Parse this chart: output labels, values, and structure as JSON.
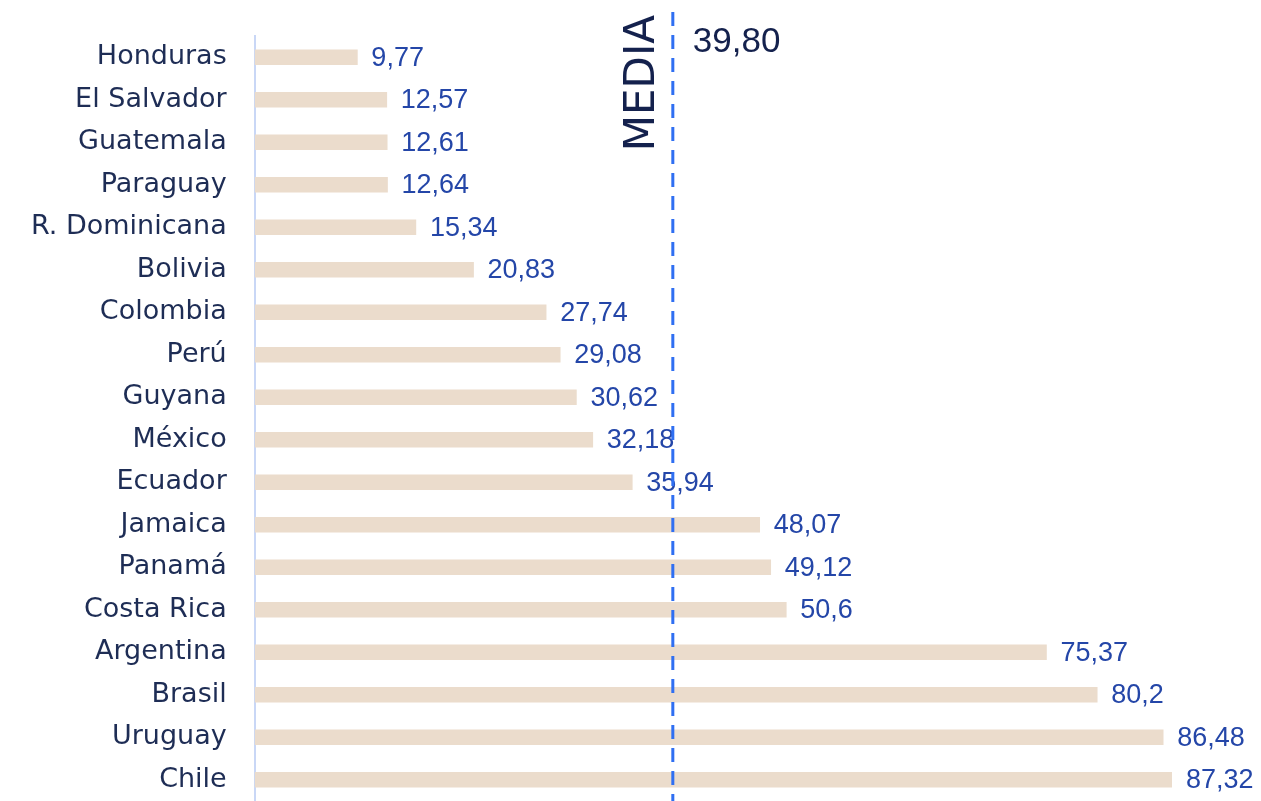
{
  "chart_data": {
    "type": "bar",
    "orientation": "horizontal",
    "categories": [
      "Honduras",
      "El Salvador",
      "Guatemala",
      "Paraguay",
      "R. Dominicana",
      "Bolivia",
      "Colombia",
      "Perú",
      "Guyana",
      "México",
      "Ecuador",
      "Jamaica",
      "Panamá",
      "Costa Rica",
      "Argentina",
      "Brasil",
      "Uruguay",
      "Chile"
    ],
    "values": [
      9.77,
      12.57,
      12.61,
      12.64,
      15.34,
      20.83,
      27.74,
      29.08,
      30.62,
      32.18,
      35.94,
      48.07,
      49.12,
      50.6,
      75.37,
      80.2,
      86.48,
      87.32
    ],
    "value_labels": [
      "9,77",
      "12,57",
      "12,61",
      "12,64",
      "15,34",
      "20,83",
      "27,74",
      "29,08",
      "30,62",
      "32,18",
      "35,94",
      "48,07",
      "49,12",
      "50,6",
      "75,37",
      "80,2",
      "86,48",
      "87,32"
    ],
    "color": "#ebdccc",
    "tick_labels": "y",
    "ref_lines": [
      {
        "axis": "x",
        "value": 39.8,
        "label": "MEDIA",
        "color": "#2f6ff2",
        "line_style": "dashed"
      }
    ],
    "annotations": [
      {
        "text": "39,80",
        "x": 39.8
      }
    ]
  }
}
